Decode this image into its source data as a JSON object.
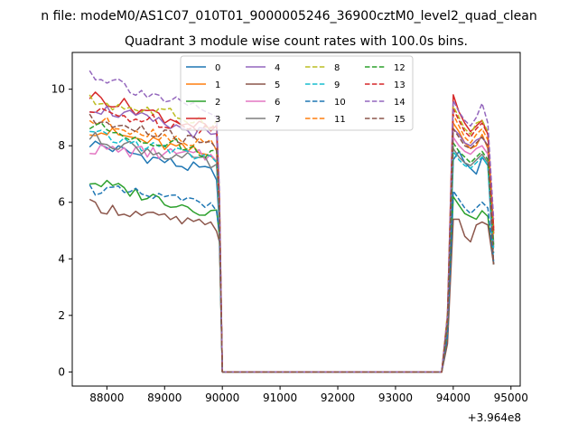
{
  "figure": {
    "suptitle": "n file: modeM0/AS1C07_010T01_9000005246_36900cztM0_level2_quad_clean",
    "title": "Quadrant 3 module wise count rates with 100.0s bins."
  },
  "chart_data": {
    "type": "line",
    "title": "Quadrant 3 module wise count rates with 100.0s bins.",
    "xlabel": "",
    "ylabel": "",
    "x_offset_label": "+3.964e8",
    "xlim": [
      87400,
      95160
    ],
    "ylim": [
      -0.5,
      11.3
    ],
    "xticks": [
      88000,
      89000,
      90000,
      91000,
      92000,
      93000,
      94000,
      95000
    ],
    "xtick_labels": [
      "88000",
      "89000",
      "90000",
      "91000",
      "92000",
      "93000",
      "94000",
      "95000"
    ],
    "yticks": [
      0,
      2,
      4,
      6,
      8,
      10
    ],
    "ytick_labels": [
      "0",
      "2",
      "4",
      "6",
      "8",
      "10"
    ],
    "grid": false,
    "legend": {
      "placement": "top-center",
      "columns": 4
    },
    "segments": {
      "left_x_start": 87700,
      "left_x_end": 89900,
      "step": 100,
      "drop_x": 90000,
      "right_rise_x": 93800,
      "right_x_start": 93900,
      "right_x_end": 94700
    },
    "series": [
      {
        "name": "0",
        "color": "#1f77b4",
        "dash": false,
        "left_start": 8.1,
        "left_end": 7.0,
        "drop_val": 5.2,
        "right": [
          0.0,
          1.5,
          7.5,
          7.8,
          7.4,
          7.2,
          7.0,
          7.6,
          7.3,
          3.8
        ]
      },
      {
        "name": "1",
        "color": "#ff7f0e",
        "dash": false,
        "left_start": 8.6,
        "left_end": 7.6,
        "drop_val": 5.5,
        "right": [
          0.0,
          1.8,
          8.8,
          8.5,
          8.1,
          7.9,
          8.0,
          8.4,
          7.9,
          4.9
        ]
      },
      {
        "name": "2",
        "color": "#2ca02c",
        "dash": false,
        "left_start": 6.75,
        "left_end": 5.6,
        "drop_val": 4.8,
        "right": [
          0.0,
          1.2,
          6.2,
          5.9,
          5.6,
          5.5,
          5.4,
          5.7,
          5.5,
          3.8
        ]
      },
      {
        "name": "3",
        "color": "#d62728",
        "dash": false,
        "left_start": 9.8,
        "left_end": 8.5,
        "drop_val": 6.0,
        "right": [
          0.0,
          2.0,
          9.8,
          9.2,
          8.8,
          8.5,
          8.7,
          8.9,
          8.4,
          5.1
        ]
      },
      {
        "name": "4",
        "color": "#9467bd",
        "dash": false,
        "left_start": 9.4,
        "left_end": 8.3,
        "drop_val": 5.8,
        "right": [
          0.0,
          1.9,
          8.6,
          8.4,
          8.1,
          8.0,
          8.2,
          8.3,
          8.0,
          4.9
        ]
      },
      {
        "name": "5",
        "color": "#8c564b",
        "dash": false,
        "left_start": 5.9,
        "left_end": 5.1,
        "drop_val": 4.6,
        "right": [
          0.0,
          1.0,
          5.4,
          5.4,
          4.8,
          4.6,
          5.2,
          5.3,
          5.2,
          3.8
        ]
      },
      {
        "name": "6",
        "color": "#e377c2",
        "dash": false,
        "left_start": 7.9,
        "left_end": 7.6,
        "drop_val": 5.4,
        "right": [
          0.0,
          1.6,
          8.3,
          8.0,
          7.8,
          7.7,
          7.9,
          8.0,
          7.7,
          4.6
        ]
      },
      {
        "name": "7",
        "color": "#7f7f7f",
        "dash": false,
        "left_start": 8.3,
        "left_end": 7.3,
        "drop_val": 5.4,
        "right": [
          0.0,
          1.6,
          7.9,
          7.6,
          7.4,
          7.3,
          7.5,
          7.7,
          7.4,
          4.4
        ]
      },
      {
        "name": "8",
        "color": "#bcbd22",
        "dash": true,
        "left_start": 9.6,
        "left_end": 8.8,
        "drop_val": 6.2,
        "right": [
          0.0,
          2.1,
          9.4,
          9.0,
          8.6,
          8.4,
          8.8,
          8.9,
          8.5,
          5.0
        ]
      },
      {
        "name": "9",
        "color": "#17becf",
        "dash": true,
        "left_start": 8.4,
        "left_end": 7.5,
        "drop_val": 5.4,
        "right": [
          0.0,
          1.7,
          7.8,
          7.5,
          7.3,
          7.2,
          7.4,
          7.6,
          7.3,
          4.2
        ]
      },
      {
        "name": "10",
        "color": "#1f77b4",
        "dash": true,
        "left_start": 6.5,
        "left_end": 5.9,
        "drop_val": 4.9,
        "right": [
          0.0,
          1.3,
          6.4,
          6.1,
          5.8,
          5.6,
          5.8,
          6.0,
          5.8,
          3.9
        ]
      },
      {
        "name": "11",
        "color": "#ff7f0e",
        "dash": true,
        "left_start": 8.9,
        "left_end": 8.0,
        "drop_val": 5.8,
        "right": [
          0.0,
          1.8,
          9.1,
          8.7,
          8.3,
          8.1,
          8.4,
          8.6,
          8.2,
          4.8
        ]
      },
      {
        "name": "12",
        "color": "#2ca02c",
        "dash": true,
        "left_start": 8.7,
        "left_end": 7.7,
        "drop_val": 5.6,
        "right": [
          0.0,
          1.7,
          8.1,
          7.8,
          7.6,
          7.4,
          7.6,
          7.8,
          7.5,
          4.5
        ]
      },
      {
        "name": "13",
        "color": "#d62728",
        "dash": true,
        "left_start": 9.2,
        "left_end": 8.6,
        "drop_val": 6.0,
        "right": [
          0.0,
          1.9,
          9.3,
          8.9,
          8.5,
          8.3,
          8.6,
          8.8,
          8.4,
          5.0
        ]
      },
      {
        "name": "14",
        "color": "#9467bd",
        "dash": true,
        "left_start": 10.6,
        "left_end": 9.0,
        "drop_val": 6.4,
        "right": [
          0.0,
          2.0,
          9.6,
          9.2,
          8.9,
          8.7,
          9.0,
          9.5,
          8.8,
          5.4
        ]
      },
      {
        "name": "15",
        "color": "#8c564b",
        "dash": true,
        "left_start": 8.9,
        "left_end": 8.0,
        "drop_val": 5.7,
        "right": [
          0.0,
          1.8,
          8.6,
          8.3,
          8.0,
          7.9,
          8.1,
          8.3,
          8.0,
          3.8
        ]
      }
    ]
  }
}
